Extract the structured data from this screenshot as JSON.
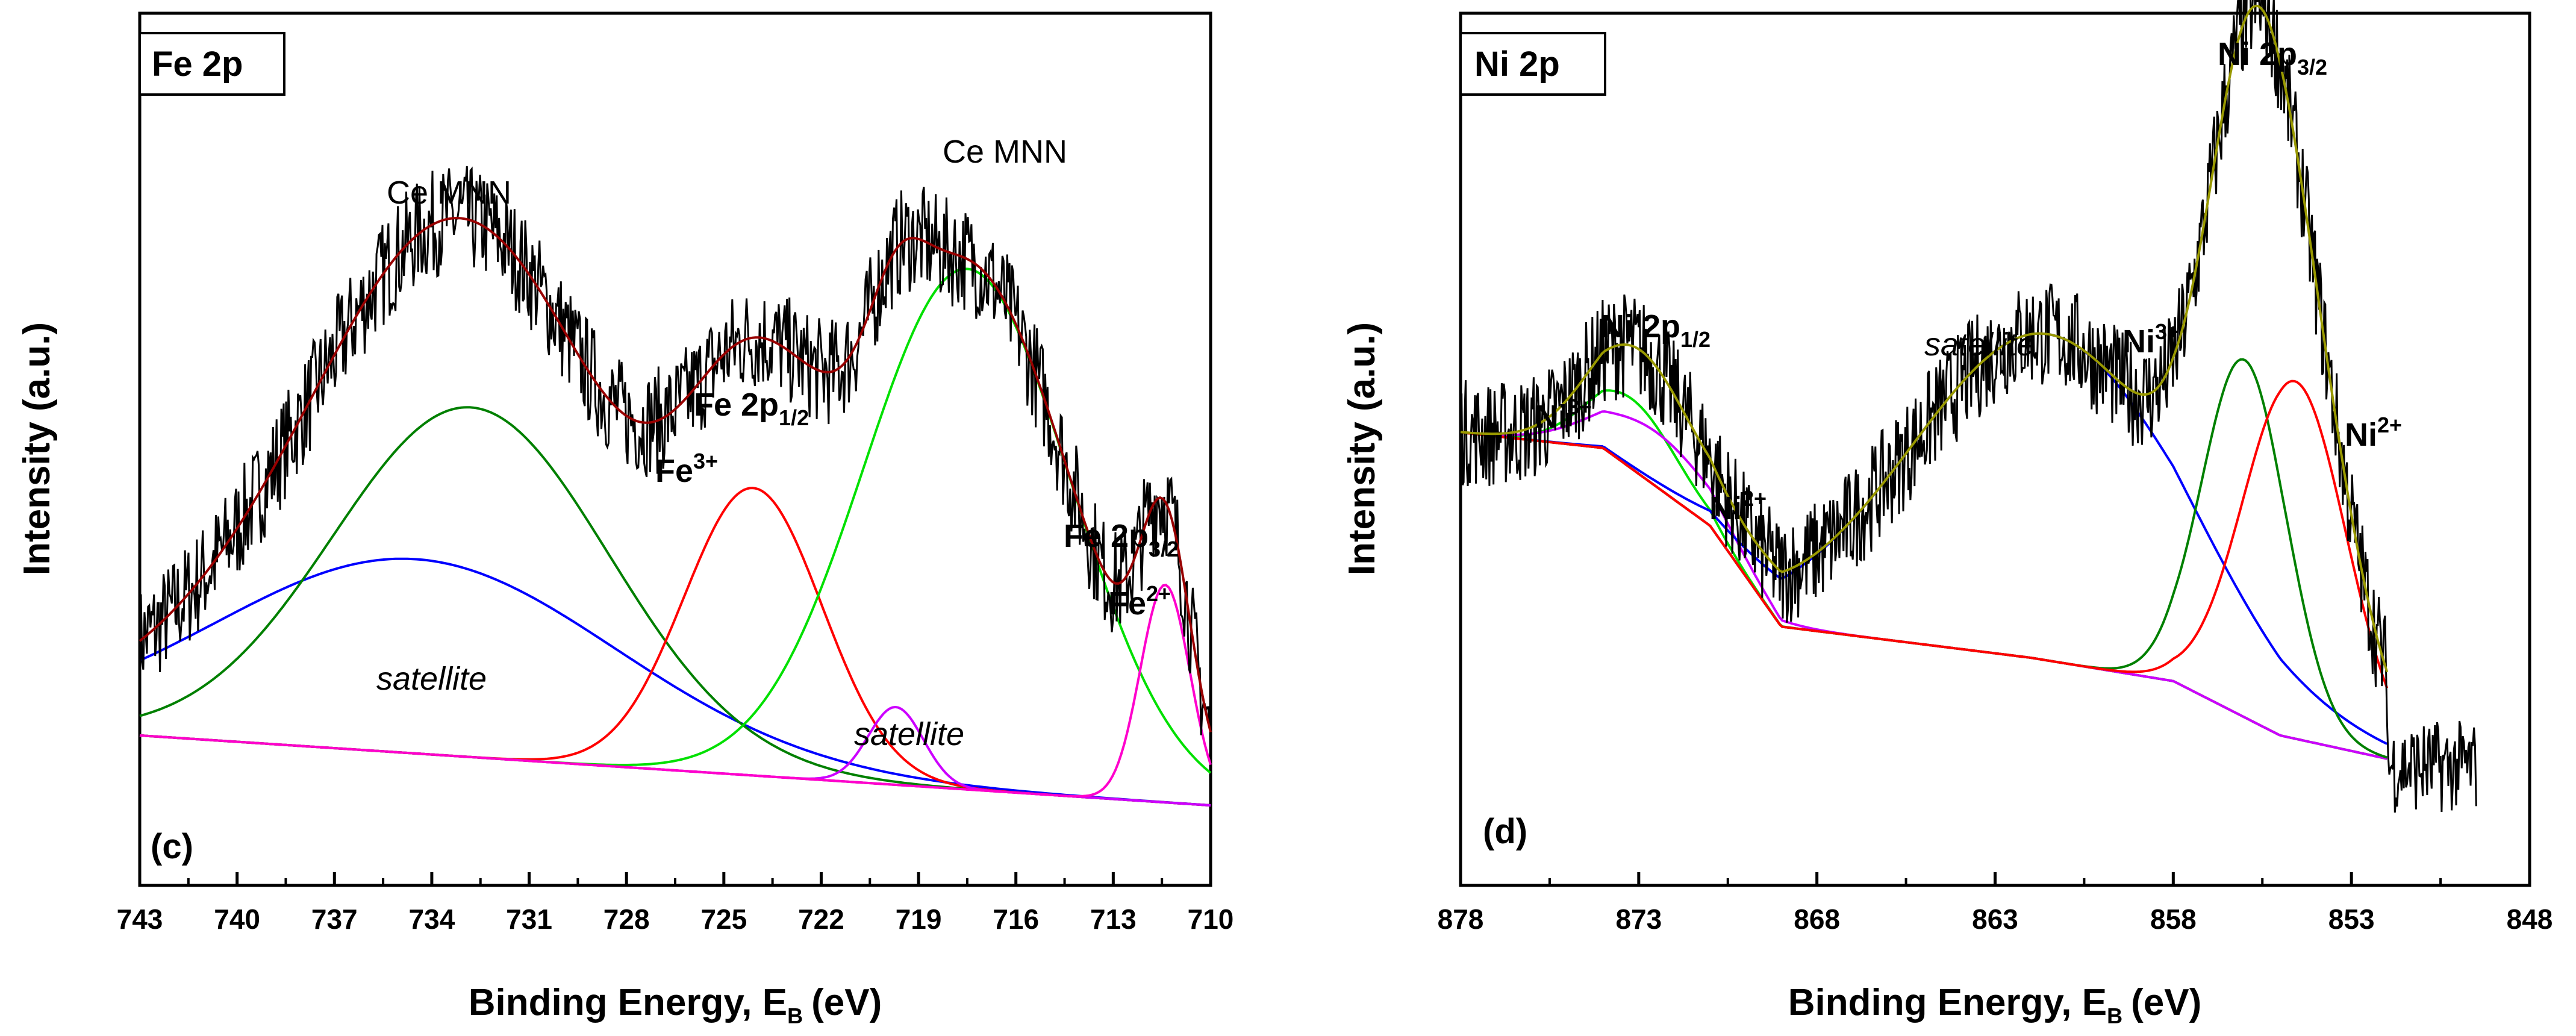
{
  "chart_data": [
    {
      "type": "line",
      "panel": "c",
      "title": "Fe 2p",
      "panel_label": "(c)",
      "xlabel": "Binding Energy, E",
      "xlabel_sub": "B",
      "xlabel_unit": "(eV)",
      "ylabel": "Intensity (a.u.)",
      "x_reversed": true,
      "xlim": [
        743,
        710
      ],
      "ylim": [
        0,
        100
      ],
      "xticks": [
        743,
        740,
        737,
        734,
        731,
        728,
        725,
        722,
        719,
        716,
        713,
        710
      ],
      "background": {
        "name": "background",
        "color": "#990099",
        "x": [
          743,
          710
        ],
        "y": [
          10,
          1
        ]
      },
      "components": [
        {
          "name": "satellite",
          "color": "#0000ff",
          "center": 734.5,
          "height": 25,
          "fwhm": 14.5
        },
        {
          "name": "Ce MNN",
          "color": "#008000",
          "center": 732.8,
          "height": 45,
          "fwhm": 10
        },
        {
          "name": "Fe3+ 2p1/2",
          "color": "#ff0000",
          "center": 724.1,
          "height": 37,
          "fwhm": 5
        },
        {
          "name": "satellite",
          "color": "#cc00ff",
          "center": 719.7,
          "height": 10,
          "fwhm": 2
        },
        {
          "name": "Ce MNN",
          "color": "#00e000",
          "center": 717.5,
          "height": 67,
          "fwhm": 7.5
        },
        {
          "name": "Fe2+ 2p3/2",
          "color": "#ff00cc",
          "center": 711.4,
          "height": 28,
          "fwhm": 1.8
        }
      ],
      "annotations": [
        {
          "text": "Ce MNN",
          "style": "normal"
        },
        {
          "text": "Ce MNN",
          "style": "normal"
        },
        {
          "text": "satellite",
          "style": "italic"
        },
        {
          "text": "satellite",
          "style": "italic"
        },
        {
          "text": "Fe",
          "sup": "3+",
          "style": "bold"
        },
        {
          "text": "Fe 2p",
          "sub": "1/2",
          "style": "bold"
        },
        {
          "text": "Fe 2p",
          "sub": "3/2",
          "style": "bold"
        },
        {
          "text": "Fe",
          "sup": "2+",
          "style": "bold"
        }
      ]
    },
    {
      "type": "line",
      "panel": "d",
      "title": "Ni 2p",
      "panel_label": "(d)",
      "xlabel": "Binding Energy, E",
      "xlabel_sub": "B",
      "xlabel_unit": "(eV)",
      "ylabel": "Intensity (a.u.)",
      "x_reversed": true,
      "xlim": [
        878,
        848
      ],
      "ylim": [
        0,
        100
      ],
      "xticks": [
        878,
        873,
        868,
        863,
        858,
        853,
        848
      ],
      "background": {
        "name": "Shirley background",
        "color": "#990000",
        "points_x": [
          878,
          874,
          871,
          869,
          862,
          858,
          855,
          852
        ],
        "points_y": [
          49,
          47,
          37,
          24,
          20,
          17,
          10,
          7
        ]
      },
      "components": [
        {
          "name": "Ni3+ 2p1/2",
          "color": "#00e000",
          "center": 873.2,
          "height": 9,
          "fwhm": 3
        },
        {
          "name": "Ni2+ 2p1/2",
          "color": "#cc00ff",
          "center": 872.5,
          "height": 7,
          "fwhm": 4
        },
        {
          "name": "satellite",
          "color": "#0000ff",
          "center": 861.5,
          "height": 42,
          "fwhm": 9
        },
        {
          "name": "Ni3+ 2p3/2",
          "color": "#008000",
          "center": 856.0,
          "height": 46,
          "fwhm": 2.8
        },
        {
          "name": "Ni2+ 2p3/2",
          "color": "#ff0000",
          "center": 854.6,
          "height": 46,
          "fwhm": 3.4
        }
      ],
      "annotations": [
        {
          "text": "Ni",
          "sup": "3+",
          "style": "bold"
        },
        {
          "text": "Ni 2p",
          "sub": "1/2",
          "style": "bold"
        },
        {
          "text": "Ni",
          "sup": "2+",
          "style": "bold"
        },
        {
          "text": "satellite",
          "style": "italic"
        },
        {
          "text": "Ni",
          "sup": "3+",
          "style": "bold"
        },
        {
          "text": "Ni 2p",
          "sub": "3/2",
          "style": "bold"
        },
        {
          "text": "Ni",
          "sup": "2+",
          "style": "bold"
        }
      ]
    }
  ]
}
